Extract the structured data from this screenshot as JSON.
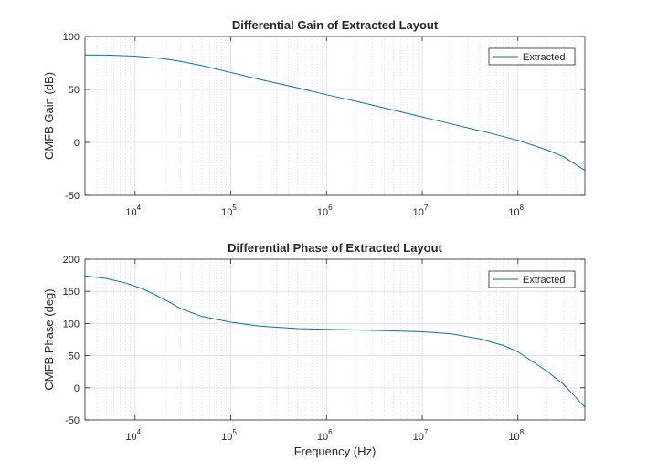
{
  "chart_data": [
    {
      "type": "line",
      "title": "Differential Gain of Extracted Layout",
      "xlabel": "",
      "ylabel": "CMFB Gain (dB)",
      "xscale": "log",
      "xlim": [
        3000,
        500000000
      ],
      "ylim": [
        -50,
        100
      ],
      "xticks": [
        10000,
        100000,
        1000000,
        10000000,
        100000000
      ],
      "xtick_exponents": [
        "4",
        "5",
        "6",
        "7",
        "8"
      ],
      "xtick_base": "10",
      "yticks": [
        -50,
        0,
        50,
        100
      ],
      "ytick_labels": [
        "-50",
        "0",
        "50",
        "100"
      ],
      "grid": true,
      "legend_position": "top-right",
      "color": "#0072bd",
      "series": [
        {
          "name": "Extracted",
          "x": [
            3000,
            5000,
            10000,
            20000,
            30000,
            50000,
            100000,
            200000,
            500000,
            1000000,
            2000000,
            5000000,
            10000000,
            20000000,
            50000000,
            100000000,
            200000000,
            300000000,
            500000000
          ],
          "y": [
            82.5,
            82.4,
            81.5,
            79.0,
            76.5,
            72.5,
            66.0,
            59.5,
            51.5,
            45.0,
            39.0,
            30.5,
            24.0,
            17.5,
            9.0,
            2.0,
            -7.0,
            -13.5,
            -26.5
          ]
        }
      ]
    },
    {
      "type": "line",
      "title": "Differential Phase of Extracted Layout",
      "xlabel": "Frequency (Hz)",
      "ylabel": "CMFB Phase (deg)",
      "xscale": "log",
      "xlim": [
        3000,
        500000000
      ],
      "ylim": [
        -50,
        200
      ],
      "xticks": [
        10000,
        100000,
        1000000,
        10000000,
        100000000
      ],
      "xtick_exponents": [
        "4",
        "5",
        "6",
        "7",
        "8"
      ],
      "xtick_base": "10",
      "yticks": [
        -50,
        0,
        50,
        100,
        150,
        200
      ],
      "ytick_labels": [
        "-50",
        "0",
        "50",
        "100",
        "150",
        "200"
      ],
      "grid": true,
      "legend_position": "top-right",
      "color": "#0072bd",
      "series": [
        {
          "name": "Extracted",
          "x": [
            3000,
            5000,
            8000,
            12000,
            20000,
            30000,
            50000,
            100000,
            200000,
            500000,
            1000000,
            2000000,
            5000000,
            10000000,
            20000000,
            40000000,
            70000000,
            100000000,
            200000000,
            300000000,
            500000000
          ],
          "y": [
            174,
            170,
            163,
            154,
            138,
            123,
            111,
            102,
            96,
            92,
            91,
            90,
            88.5,
            87,
            84,
            76,
            66,
            56,
            26,
            5,
            -30
          ]
        }
      ]
    }
  ]
}
